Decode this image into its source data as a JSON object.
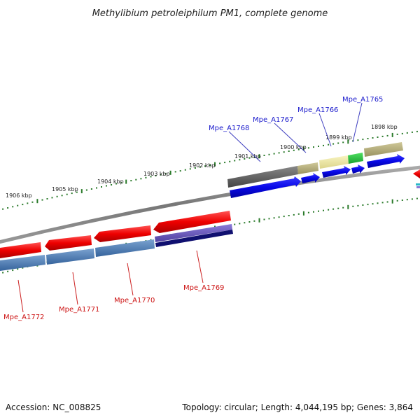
{
  "title": "Methylibium petroleiphilum PM1, complete genome",
  "footer": {
    "accession": "Accession: NC_008825",
    "summary": "Topology: circular; Length: 4,044,195 bp; Genes: 3,864"
  },
  "ticks_top": [
    "1906 kbp",
    "1905 kbp",
    "1904 kbp",
    "1903 kbp",
    "1902 kbp",
    "1901 kbp",
    "1900 kbp",
    "1899 kbp",
    "1898 kbp"
  ],
  "genes_top": [
    "Mpe_A1768",
    "Mpe_A1767",
    "Mpe_A1766",
    "Mpe_A1765"
  ],
  "genes_bottom": [
    "Mpe_A1772",
    "Mpe_A1771",
    "Mpe_A1770",
    "Mpe_A1769"
  ],
  "colors": {
    "forward_gene": "#1010e0",
    "reverse_gene": "#e00000",
    "reverse_bar": "#4a78b0",
    "gray_bar": "#666666",
    "khaki_bar": "#b8b078",
    "pale_bar": "#eee8a0",
    "green_bar": "#28c040",
    "purple_bar": "#6a5ab8",
    "navy_bar": "#101070",
    "tick_green": "#2a7a2a",
    "backbone": "#888888"
  }
}
